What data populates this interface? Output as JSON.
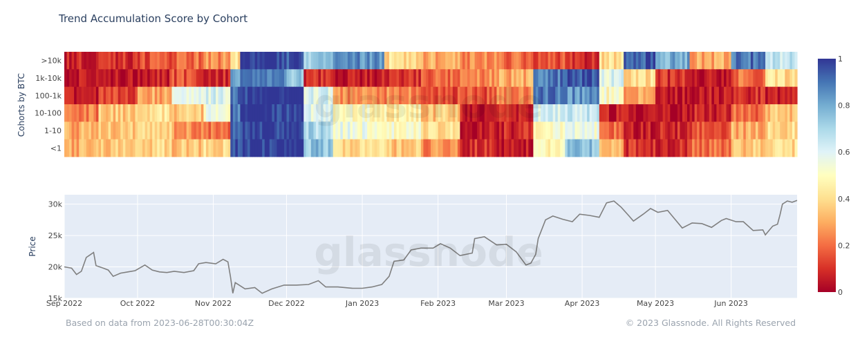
{
  "title": "Trend Accumulation Score by Cohort",
  "footer": {
    "left": "Based on data from 2023-06-28T00:30:04Z",
    "right": "© 2023 Glassnode. All Rights Reserved"
  },
  "watermark": "glassnode",
  "chart_data": [
    {
      "type": "heatmap",
      "ylabel": "Cohorts by BTC",
      "rows": [
        ">10k",
        "1k-10k",
        "100-1k",
        "10-100",
        "1-10",
        "<1"
      ],
      "x_start": "2022-09-01",
      "x_end": "2023-06-28",
      "color_scale": {
        "range": [
          0,
          1
        ],
        "ticks": [
          "0",
          "0.2",
          "0.4",
          "0.6",
          "0.8",
          "1"
        ],
        "colors": [
          "#a50026",
          "#d73027",
          "#f46d43",
          "#fdae61",
          "#fee090",
          "#ffffbf",
          "#e0f3f8",
          "#abd9e9",
          "#74add1",
          "#4575b4",
          "#313695"
        ]
      },
      "segments": [
        {
          "start": "2022-09-01",
          "end": "2022-09-15",
          "values": [
            0.08,
            0.05,
            0.06,
            0.22,
            0.3,
            0.3
          ]
        },
        {
          "start": "2022-09-15",
          "end": "2022-10-01",
          "values": [
            0.1,
            0.06,
            0.12,
            0.35,
            0.35,
            0.35
          ]
        },
        {
          "start": "2022-10-01",
          "end": "2022-10-15",
          "values": [
            0.15,
            0.08,
            0.3,
            0.4,
            0.4,
            0.38
          ]
        },
        {
          "start": "2022-10-15",
          "end": "2022-10-28",
          "values": [
            0.2,
            0.15,
            0.55,
            0.35,
            0.25,
            0.35
          ]
        },
        {
          "start": "2022-10-28",
          "end": "2022-11-08",
          "values": [
            0.25,
            0.1,
            0.6,
            0.55,
            0.2,
            0.4
          ]
        },
        {
          "start": "2022-11-08",
          "end": "2022-11-12",
          "values": [
            0.4,
            0.8,
            0.9,
            0.9,
            0.95,
            0.95
          ]
        },
        {
          "start": "2022-11-12",
          "end": "2022-12-01",
          "values": [
            1.0,
            0.9,
            1.0,
            1.0,
            1.0,
            1.0
          ]
        },
        {
          "start": "2022-12-01",
          "end": "2022-12-08",
          "values": [
            0.95,
            0.75,
            1.0,
            1.0,
            1.0,
            1.0
          ]
        },
        {
          "start": "2022-12-08",
          "end": "2022-12-20",
          "values": [
            0.7,
            0.1,
            0.6,
            0.6,
            0.7,
            0.75
          ]
        },
        {
          "start": "2022-12-20",
          "end": "2023-01-10",
          "values": [
            0.85,
            0.05,
            0.25,
            0.5,
            0.55,
            0.4
          ]
        },
        {
          "start": "2023-01-10",
          "end": "2023-01-25",
          "values": [
            0.4,
            0.1,
            0.25,
            0.45,
            0.5,
            0.35
          ]
        },
        {
          "start": "2023-01-25",
          "end": "2023-02-10",
          "values": [
            0.3,
            0.2,
            0.15,
            0.35,
            0.4,
            0.25
          ]
        },
        {
          "start": "2023-02-10",
          "end": "2023-02-25",
          "values": [
            0.25,
            0.25,
            0.15,
            0.05,
            0.05,
            0.1
          ]
        },
        {
          "start": "2023-02-25",
          "end": "2023-03-12",
          "values": [
            0.2,
            0.3,
            0.25,
            0.08,
            0.08,
            0.05
          ]
        },
        {
          "start": "2023-03-12",
          "end": "2023-03-25",
          "values": [
            0.15,
            0.9,
            0.9,
            0.6,
            0.5,
            0.45
          ]
        },
        {
          "start": "2023-03-25",
          "end": "2023-04-08",
          "values": [
            0.1,
            0.95,
            0.85,
            0.65,
            0.55,
            0.75
          ]
        },
        {
          "start": "2023-04-08",
          "end": "2023-04-18",
          "values": [
            0.4,
            0.6,
            0.5,
            0.05,
            0.2,
            0.35
          ]
        },
        {
          "start": "2023-04-18",
          "end": "2023-05-01",
          "values": [
            0.95,
            0.4,
            0.3,
            0.03,
            0.05,
            0.1
          ]
        },
        {
          "start": "2023-05-01",
          "end": "2023-05-15",
          "values": [
            0.8,
            0.1,
            0.05,
            0.05,
            0.08,
            0.1
          ]
        },
        {
          "start": "2023-05-15",
          "end": "2023-06-01",
          "values": [
            0.3,
            0.05,
            0.05,
            0.08,
            0.15,
            0.2
          ]
        },
        {
          "start": "2023-06-01",
          "end": "2023-06-15",
          "values": [
            0.9,
            0.2,
            0.1,
            0.2,
            0.3,
            0.35
          ]
        },
        {
          "start": "2023-06-15",
          "end": "2023-06-28",
          "values": [
            0.65,
            0.4,
            0.05,
            0.35,
            0.4,
            0.4
          ]
        }
      ]
    },
    {
      "type": "line",
      "ylabel": "Price",
      "xlim": [
        "2022-09-01",
        "2023-06-28"
      ],
      "ylim": [
        15000,
        31500
      ],
      "yticks": [
        {
          "value": 15000,
          "label": "15k"
        },
        {
          "value": 20000,
          "label": "20k"
        },
        {
          "value": 25000,
          "label": "25k"
        },
        {
          "value": 30000,
          "label": "30k"
        }
      ],
      "xticks": [
        {
          "date": "2022-09-01",
          "label": "Sep 2022"
        },
        {
          "date": "2022-10-01",
          "label": "Oct 2022"
        },
        {
          "date": "2022-11-01",
          "label": "Nov 2022"
        },
        {
          "date": "2022-12-01",
          "label": "Dec 2022"
        },
        {
          "date": "2023-01-01",
          "label": "Jan 2023"
        },
        {
          "date": "2023-02-01",
          "label": "Feb 2023"
        },
        {
          "date": "2023-03-01",
          "label": "Mar 2023"
        },
        {
          "date": "2023-04-01",
          "label": "Apr 2023"
        },
        {
          "date": "2023-05-01",
          "label": "May 2023"
        },
        {
          "date": "2023-06-01",
          "label": "Jun 2023"
        }
      ],
      "series": [
        {
          "color": "#7f7f7f",
          "points": [
            [
              "2022-09-01",
              20000
            ],
            [
              "2022-09-04",
              19800
            ],
            [
              "2022-09-06",
              18800
            ],
            [
              "2022-09-08",
              19300
            ],
            [
              "2022-09-10",
              21500
            ],
            [
              "2022-09-13",
              22300
            ],
            [
              "2022-09-14",
              20200
            ],
            [
              "2022-09-17",
              19800
            ],
            [
              "2022-09-19",
              19500
            ],
            [
              "2022-09-21",
              18500
            ],
            [
              "2022-09-24",
              19000
            ],
            [
              "2022-09-27",
              19200
            ],
            [
              "2022-09-30",
              19400
            ],
            [
              "2022-10-04",
              20300
            ],
            [
              "2022-10-07",
              19500
            ],
            [
              "2022-10-10",
              19200
            ],
            [
              "2022-10-13",
              19100
            ],
            [
              "2022-10-16",
              19300
            ],
            [
              "2022-10-20",
              19100
            ],
            [
              "2022-10-24",
              19400
            ],
            [
              "2022-10-26",
              20500
            ],
            [
              "2022-10-29",
              20700
            ],
            [
              "2022-11-02",
              20500
            ],
            [
              "2022-11-05",
              21200
            ],
            [
              "2022-11-07",
              20800
            ],
            [
              "2022-11-08",
              18500
            ],
            [
              "2022-11-09",
              15800
            ],
            [
              "2022-11-10",
              17500
            ],
            [
              "2022-11-14",
              16500
            ],
            [
              "2022-11-18",
              16700
            ],
            [
              "2022-11-21",
              15800
            ],
            [
              "2022-11-25",
              16500
            ],
            [
              "2022-11-30",
              17100
            ],
            [
              "2022-12-05",
              17100
            ],
            [
              "2022-12-10",
              17200
            ],
            [
              "2022-12-14",
              17800
            ],
            [
              "2022-12-17",
              16800
            ],
            [
              "2022-12-22",
              16800
            ],
            [
              "2022-12-28",
              16600
            ],
            [
              "2023-01-01",
              16600
            ],
            [
              "2023-01-05",
              16800
            ],
            [
              "2023-01-09",
              17200
            ],
            [
              "2023-01-12",
              18500
            ],
            [
              "2023-01-14",
              20900
            ],
            [
              "2023-01-18",
              21100
            ],
            [
              "2023-01-21",
              22700
            ],
            [
              "2023-01-25",
              23000
            ],
            [
              "2023-01-30",
              23000
            ],
            [
              "2023-02-02",
              23700
            ],
            [
              "2023-02-06",
              23000
            ],
            [
              "2023-02-10",
              21800
            ],
            [
              "2023-02-15",
              22200
            ],
            [
              "2023-02-16",
              24500
            ],
            [
              "2023-02-20",
              24800
            ],
            [
              "2023-02-25",
              23500
            ],
            [
              "2023-03-01",
              23600
            ],
            [
              "2023-03-05",
              22400
            ],
            [
              "2023-03-09",
              20300
            ],
            [
              "2023-03-11",
              20600
            ],
            [
              "2023-03-13",
              22000
            ],
            [
              "2023-03-14",
              24500
            ],
            [
              "2023-03-17",
              27500
            ],
            [
              "2023-03-20",
              28100
            ],
            [
              "2023-03-24",
              27600
            ],
            [
              "2023-03-28",
              27200
            ],
            [
              "2023-03-31",
              28400
            ],
            [
              "2023-04-04",
              28200
            ],
            [
              "2023-04-08",
              27900
            ],
            [
              "2023-04-11",
              30200
            ],
            [
              "2023-04-14",
              30500
            ],
            [
              "2023-04-17",
              29500
            ],
            [
              "2023-04-20",
              28200
            ],
            [
              "2023-04-22",
              27300
            ],
            [
              "2023-04-26",
              28400
            ],
            [
              "2023-04-29",
              29300
            ],
            [
              "2023-05-02",
              28700
            ],
            [
              "2023-05-06",
              29000
            ],
            [
              "2023-05-09",
              27600
            ],
            [
              "2023-05-12",
              26200
            ],
            [
              "2023-05-16",
              27000
            ],
            [
              "2023-05-20",
              26900
            ],
            [
              "2023-05-24",
              26300
            ],
            [
              "2023-05-28",
              27400
            ],
            [
              "2023-05-30",
              27700
            ],
            [
              "2023-06-03",
              27200
            ],
            [
              "2023-06-06",
              27200
            ],
            [
              "2023-06-10",
              25800
            ],
            [
              "2023-06-14",
              25900
            ],
            [
              "2023-06-15",
              25100
            ],
            [
              "2023-06-18",
              26500
            ],
            [
              "2023-06-20",
              26800
            ],
            [
              "2023-06-21",
              28300
            ],
            [
              "2023-06-22",
              30000
            ],
            [
              "2023-06-24",
              30500
            ],
            [
              "2023-06-26",
              30300
            ],
            [
              "2023-06-28",
              30600
            ]
          ]
        }
      ]
    }
  ]
}
